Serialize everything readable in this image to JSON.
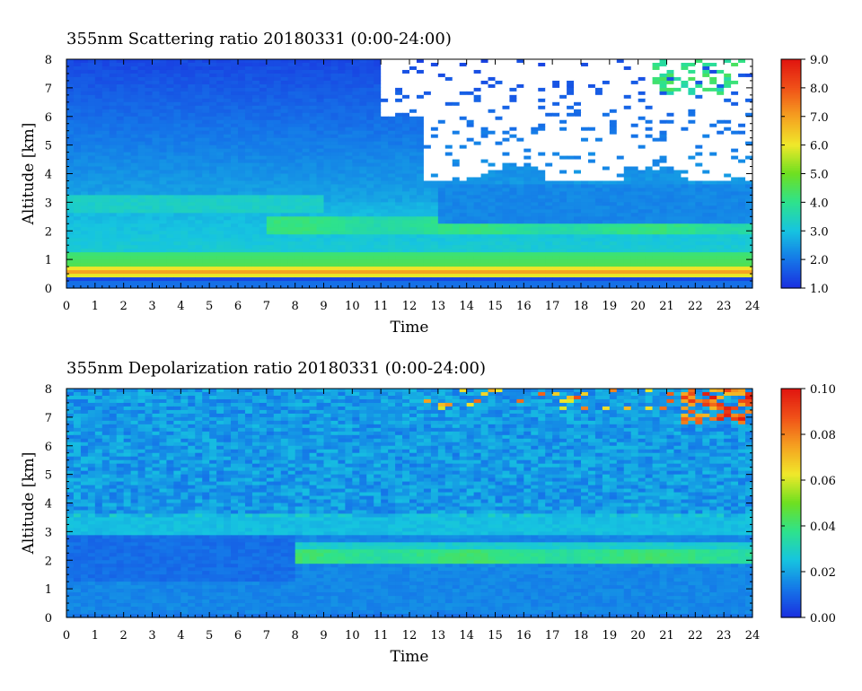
{
  "chart_data": [
    {
      "type": "heatmap",
      "title": "355nm Scattering ratio  20180331 (0:00-24:00)",
      "xlabel": "Time",
      "ylabel": "Altitude [km]",
      "xlim": [
        0,
        24
      ],
      "ylim": [
        0,
        8
      ],
      "x_ticks": [
        "0",
        "1",
        "2",
        "3",
        "4",
        "5",
        "6",
        "7",
        "8",
        "9",
        "10",
        "11",
        "12",
        "13",
        "14",
        "15",
        "16",
        "17",
        "18",
        "19",
        "20",
        "21",
        "22",
        "23",
        "24"
      ],
      "y_ticks": [
        "0",
        "1",
        "2",
        "3",
        "4",
        "5",
        "6",
        "7",
        "8"
      ],
      "colorbar": {
        "range": [
          1.0,
          9.0
        ],
        "ticks": [
          "1.0",
          "2.0",
          "3.0",
          "4.0",
          "5.0",
          "6.0",
          "7.0",
          "8.0",
          "9.0"
        ],
        "colors": [
          "#1a2fe0",
          "#1577e8",
          "#16c4e0",
          "#2ee28c",
          "#6ee020",
          "#f0e82a",
          "#f5a020",
          "#f05018",
          "#e01410"
        ]
      },
      "features": [
        {
          "name": "surface_layer",
          "altitude_km": [
            0.25,
            0.35
          ],
          "value": 1.5
        },
        {
          "name": "boundary_layer_peak",
          "altitude_km": [
            0.45,
            0.7
          ],
          "value": 7.0
        },
        {
          "name": "boundary_layer",
          "altitude_km": [
            0.7,
            1.2
          ],
          "value": 4.6
        },
        {
          "name": "aerosol_layer",
          "altitude_km": [
            1.9,
            2.4
          ],
          "time_h": [
            7,
            24
          ],
          "value": 4.0
        },
        {
          "name": "no_data_region",
          "altitude_km": [
            3.7,
            8.0
          ],
          "time_h": [
            12.5,
            24
          ]
        },
        {
          "name": "high_cloud",
          "altitude_km": [
            6.8,
            8.0
          ],
          "time_h": [
            20.5,
            24
          ],
          "value": 3.5
        }
      ]
    },
    {
      "type": "heatmap",
      "title": "355nm Depolarization ratio  20180331 (0:00-24:00)",
      "xlabel": "Time",
      "ylabel": "Altitude [km]",
      "xlim": [
        0,
        24
      ],
      "ylim": [
        0,
        8
      ],
      "x_ticks": [
        "0",
        "1",
        "2",
        "3",
        "4",
        "5",
        "6",
        "7",
        "8",
        "9",
        "10",
        "11",
        "12",
        "13",
        "14",
        "15",
        "16",
        "17",
        "18",
        "19",
        "20",
        "21",
        "22",
        "23",
        "24"
      ],
      "y_ticks": [
        "0",
        "1",
        "2",
        "3",
        "4",
        "5",
        "6",
        "7",
        "8"
      ],
      "colorbar": {
        "range": [
          0.0,
          0.1
        ],
        "ticks": [
          "0.00",
          "0.02",
          "0.04",
          "0.06",
          "0.08",
          "0.10"
        ],
        "colors": [
          "#1a2fe0",
          "#1577e8",
          "#16c4e0",
          "#2ee28c",
          "#6ee020",
          "#f0e82a",
          "#f5a020",
          "#f05018",
          "#e01410"
        ]
      },
      "features": [
        {
          "name": "lower_layer",
          "altitude_km": [
            0,
            2.8
          ],
          "value": 0.013
        },
        {
          "name": "depolarizing_layer",
          "altitude_km": [
            1.9,
            2.4
          ],
          "time_h": [
            8,
            24
          ],
          "value": 0.04
        },
        {
          "name": "mid_layer",
          "altitude_km": [
            2.8,
            3.5
          ],
          "value": 0.025
        },
        {
          "name": "upper_noise",
          "altitude_km": [
            3.5,
            8.0
          ],
          "value": 0.018
        },
        {
          "name": "high_cloud",
          "altitude_km": [
            6.8,
            8.0
          ],
          "time_h": [
            21.5,
            24
          ],
          "value": 0.085
        }
      ]
    }
  ]
}
